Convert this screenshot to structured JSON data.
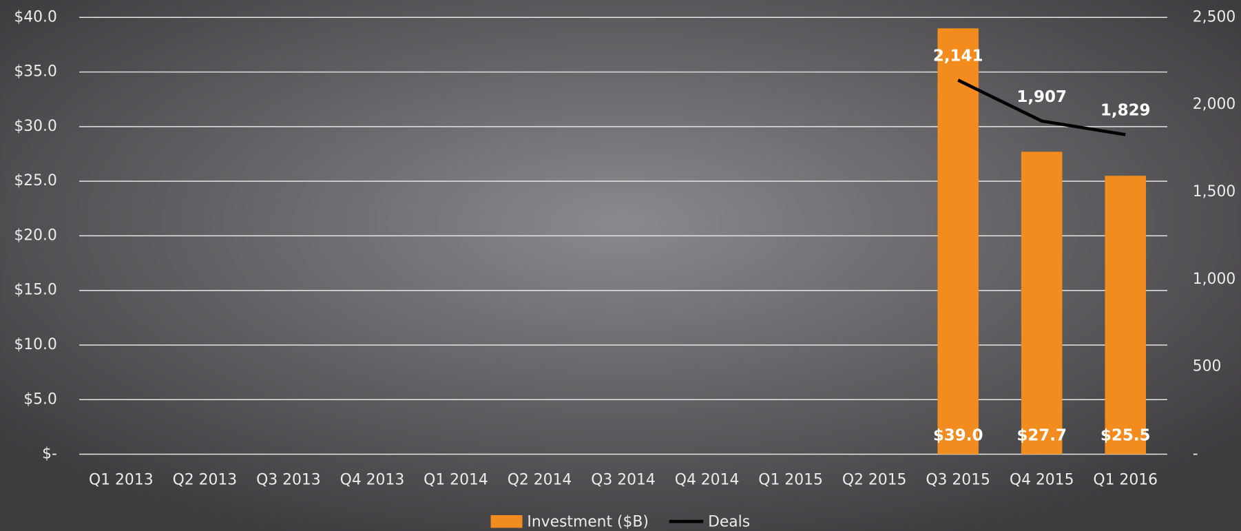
{
  "chart_data": {
    "type": "bar",
    "categories": [
      "Q1 2013",
      "Q2 2013",
      "Q3 2013",
      "Q4 2013",
      "Q1 2014",
      "Q2 2014",
      "Q3 2014",
      "Q4 2014",
      "Q1 2015",
      "Q2 2015",
      "Q3 2015",
      "Q4 2015",
      "Q1 2016"
    ],
    "series": [
      {
        "name": "Investment ($B)",
        "type": "bar",
        "color": "#f28c1f",
        "values": [
          null,
          null,
          null,
          null,
          null,
          null,
          null,
          null,
          null,
          null,
          39.0,
          27.7,
          25.5
        ],
        "value_labels": [
          null,
          null,
          null,
          null,
          null,
          null,
          null,
          null,
          null,
          null,
          "$39.0",
          "$27.7",
          "$25.5"
        ]
      },
      {
        "name": "Deals",
        "type": "line",
        "axis": "y2",
        "color": "#000000",
        "values": [
          null,
          null,
          null,
          null,
          null,
          null,
          null,
          null,
          null,
          null,
          2141,
          1907,
          1829
        ],
        "value_labels": [
          null,
          null,
          null,
          null,
          null,
          null,
          null,
          null,
          null,
          null,
          "2,141",
          "1,907",
          "1,829"
        ]
      }
    ],
    "ylim": [
      0,
      40
    ],
    "yticks": [
      {
        "value": 0,
        "label": "$-"
      },
      {
        "value": 5,
        "label": "$5.0"
      },
      {
        "value": 10,
        "label": "$10.0"
      },
      {
        "value": 15,
        "label": "$15.0"
      },
      {
        "value": 20,
        "label": "$20.0"
      },
      {
        "value": 25,
        "label": "$25.0"
      },
      {
        "value": 30,
        "label": "$30.0"
      },
      {
        "value": 35,
        "label": "$35.0"
      },
      {
        "value": 40,
        "label": "$40.0"
      }
    ],
    "y2lim": [
      0,
      2500
    ],
    "y2ticks": [
      {
        "value": 0,
        "label": "-"
      },
      500,
      {
        "value": 1000,
        "label": "1,000"
      },
      {
        "value": 1500,
        "label": "1,500"
      },
      {
        "value": 2000,
        "label": "2,000"
      },
      {
        "value": 2500,
        "label": "2,500"
      }
    ],
    "grid": true,
    "legend": "bottom"
  }
}
